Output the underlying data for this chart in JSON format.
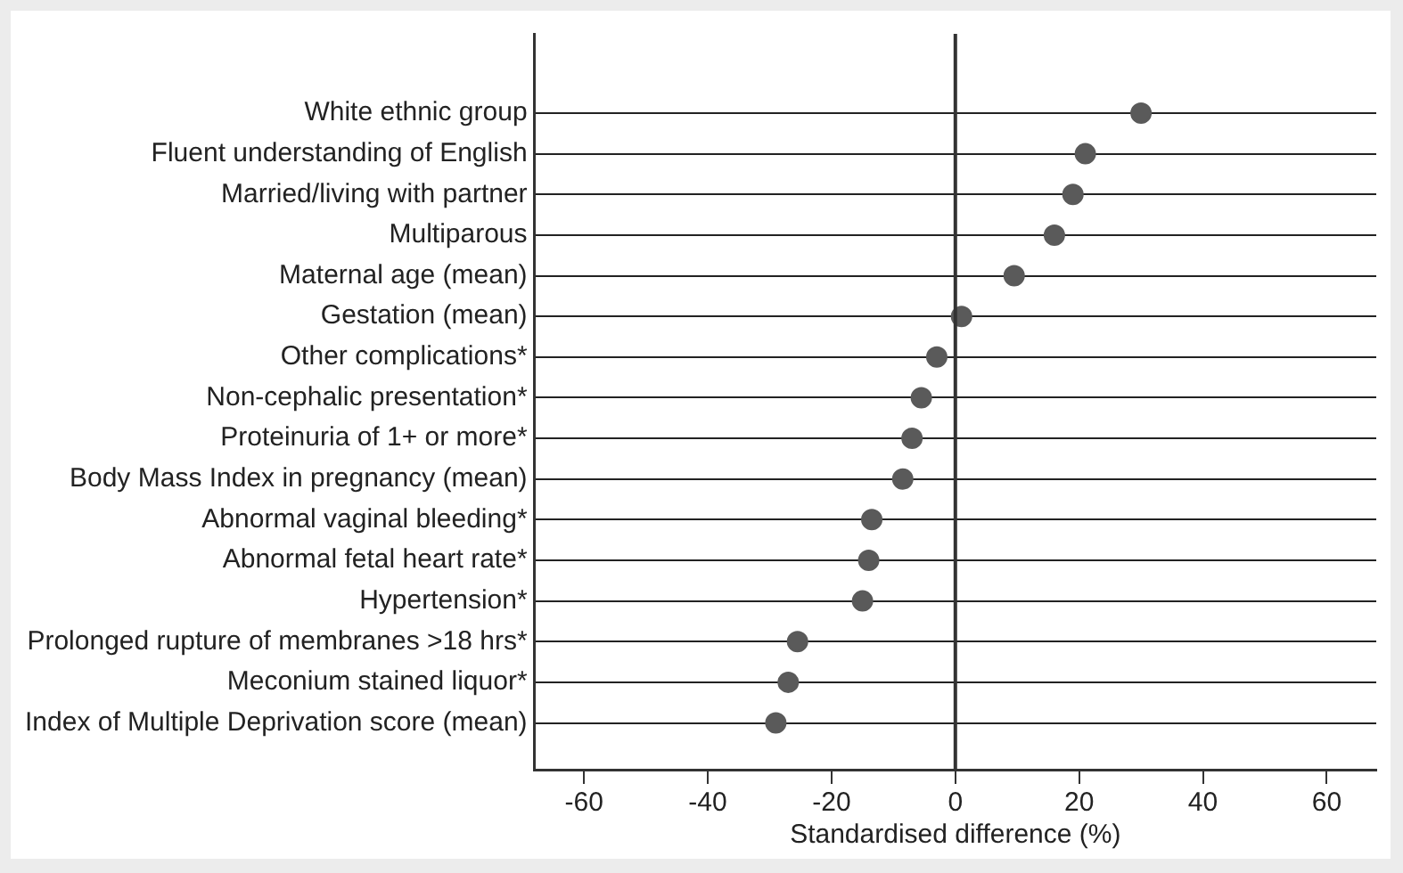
{
  "chart_data": {
    "type": "scatter",
    "orientation": "horizontal",
    "categories": [
      "White ethnic group",
      "Fluent understanding of English",
      "Married/living with partner",
      "Multiparous",
      "Maternal age (mean)",
      "Gestation (mean)",
      "Other complications*",
      "Non-cephalic presentation*",
      "Proteinuria of 1+ or more*",
      "Body Mass Index in pregnancy (mean)",
      "Abnormal vaginal bleeding*",
      "Abnormal fetal heart rate*",
      "Hypertension*",
      "Prolonged rupture of membranes >18 hrs*",
      "Meconium stained liquor*",
      "Index of Multiple Deprivation score (mean)"
    ],
    "values": [
      30,
      21,
      19,
      16,
      9.5,
      1,
      -3,
      -5.5,
      -7,
      -8.5,
      -13.5,
      -14,
      -15,
      -25.5,
      -27,
      -29
    ],
    "color": "#5a5a5a",
    "xlabel": "Standardised difference (%)",
    "xlim": [
      -68,
      68
    ],
    "xticks": [
      -60,
      -40,
      -20,
      0,
      20,
      40,
      60
    ],
    "ref_lines": [
      {
        "axis": "x",
        "value": 0,
        "color": "#333333",
        "line_style": "solid"
      }
    ],
    "grid": "y",
    "marker": "circle",
    "legend": false
  }
}
